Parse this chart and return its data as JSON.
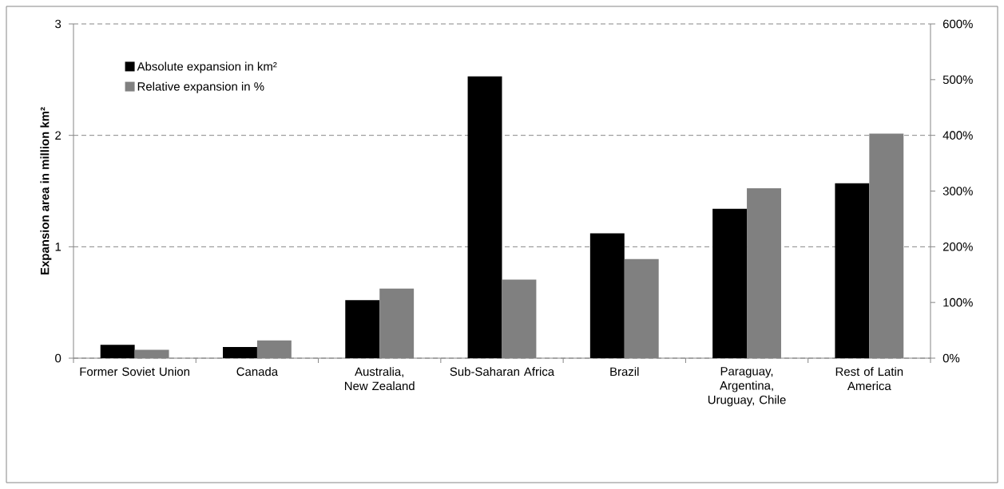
{
  "chart_data": {
    "type": "bar",
    "ylabel": "Expansion area in million km²",
    "categories": [
      "Former Soviet Union",
      "Canada",
      "Australia, New Zealand",
      "Sub-Saharan Africa",
      "Brazil",
      "Paraguay, Argentina, Uruguay, Chile",
      "Rest of Latin America"
    ],
    "series": [
      {
        "name": "Absolute expansion in km²",
        "color": "#000000",
        "values": [
          0.12,
          0.1,
          0.52,
          2.53,
          1.12,
          1.34,
          1.57
        ]
      },
      {
        "name": "Relative expansion in %",
        "color": "#808080",
        "axis": "y2",
        "values": [
          15,
          32,
          125,
          141,
          178,
          305,
          403
        ]
      }
    ],
    "ylim": [
      0,
      3
    ],
    "yticks": [
      0,
      1,
      2,
      3
    ],
    "y2lim": [
      0,
      600
    ],
    "y2ticks": [
      {
        "value": 0,
        "label": "0%"
      },
      {
        "value": 100,
        "label": "100%"
      },
      {
        "value": 200,
        "label": "200%"
      },
      {
        "value": 300,
        "label": "300%"
      },
      {
        "value": 400,
        "label": "400%"
      },
      {
        "value": 500,
        "label": "500%"
      },
      {
        "value": 600,
        "label": "600%"
      }
    ],
    "grid": "y",
    "legend": "top left"
  }
}
